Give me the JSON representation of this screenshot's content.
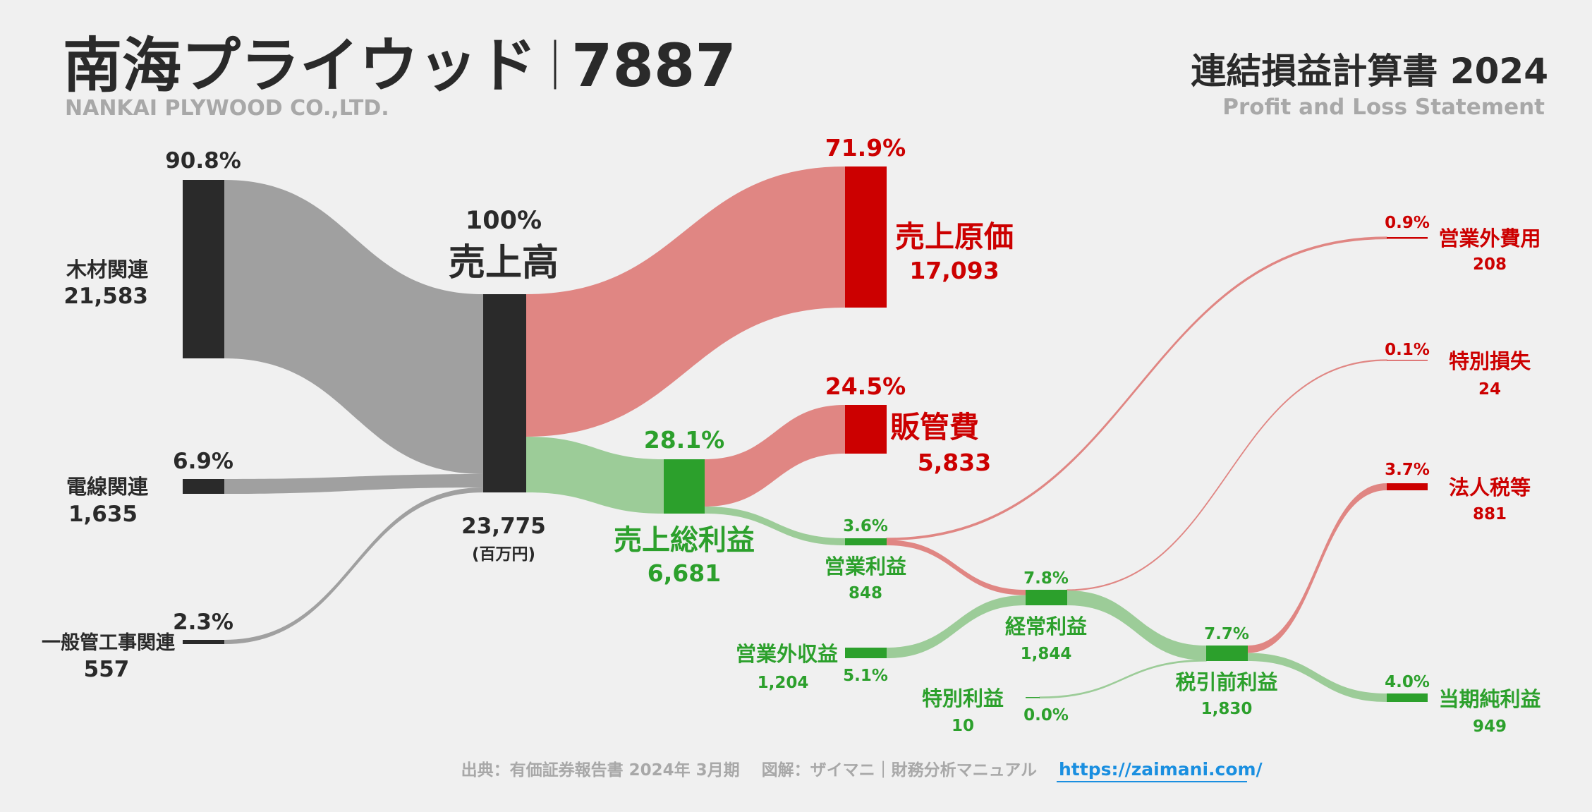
{
  "header": {
    "company": "南海プライウッド",
    "separator": "｜",
    "ticker": "7887",
    "company_en": "NANKAI PLYWOOD CO.,LTD.",
    "statement": "連結損益計算書 2024",
    "statement_en": "Profit and Loss Statement"
  },
  "footer": {
    "source": "出典：有価証券報告書 2024年 3月期　 図解：ザイマニ｜財務分析マニュアル",
    "link": "https://zaimani.com/"
  },
  "colors": {
    "dark": "#2a2a2a",
    "gray_flow": "#a0a0a0",
    "red": "#cc0000",
    "red_flow": "#e08683",
    "green": "#2ca02c",
    "green_flow": "#9ccc98",
    "link": "#1a8fe0"
  },
  "chart_data": {
    "type": "sankey",
    "unit": "百万円",
    "unit_label": "(百万円)",
    "nodes": {
      "wood": {
        "label": "木材関連",
        "value": "21,583",
        "pct": "90.8%"
      },
      "wire": {
        "label": "電線関連",
        "value": "1,635",
        "pct": "6.9%"
      },
      "pipe": {
        "label": "一般管工事関連",
        "value": "557",
        "pct": "2.3%"
      },
      "revenue": {
        "label": "売上高",
        "value": "23,775",
        "pct": "100%"
      },
      "cogs": {
        "label": "売上原価",
        "value": "17,093",
        "pct": "71.9%"
      },
      "sga": {
        "label": "販管費",
        "value": "5,833",
        "pct": "24.5%"
      },
      "gross": {
        "label": "売上総利益",
        "value": "6,681",
        "pct": "28.1%"
      },
      "op": {
        "label": "営業利益",
        "value": "848",
        "pct": "3.6%"
      },
      "nonop_inc": {
        "label": "営業外収益",
        "value": "1,204",
        "pct": "5.1%"
      },
      "nonop_exp": {
        "label": "営業外費用",
        "value": "208",
        "pct": "0.9%"
      },
      "ordinary": {
        "label": "経常利益",
        "value": "1,844",
        "pct": "7.8%"
      },
      "ext_gain": {
        "label": "特別利益",
        "value": "10",
        "pct": "0.0%"
      },
      "ext_loss": {
        "label": "特別損失",
        "value": "24",
        "pct": "0.1%"
      },
      "pretax": {
        "label": "税引前利益",
        "value": "1,830",
        "pct": "7.7%"
      },
      "tax": {
        "label": "法人税等",
        "value": "881",
        "pct": "3.7%"
      },
      "net": {
        "label": "当期純利益",
        "value": "949",
        "pct": "4.0%"
      }
    },
    "links": [
      {
        "from": "wood",
        "to": "revenue",
        "value": 21583
      },
      {
        "from": "wire",
        "to": "revenue",
        "value": 1635
      },
      {
        "from": "pipe",
        "to": "revenue",
        "value": 557
      },
      {
        "from": "revenue",
        "to": "cogs",
        "value": 17093
      },
      {
        "from": "revenue",
        "to": "gross",
        "value": 6681
      },
      {
        "from": "gross",
        "to": "sga",
        "value": 5833
      },
      {
        "from": "gross",
        "to": "op",
        "value": 848
      },
      {
        "from": "op",
        "to": "nonop_exp",
        "value": 208
      },
      {
        "from": "op",
        "to": "ordinary",
        "value": 640
      },
      {
        "from": "nonop_inc",
        "to": "ordinary",
        "value": 1204
      },
      {
        "from": "ordinary",
        "to": "ext_loss",
        "value": 24
      },
      {
        "from": "ordinary",
        "to": "pretax",
        "value": 1820
      },
      {
        "from": "ext_gain",
        "to": "pretax",
        "value": 10
      },
      {
        "from": "pretax",
        "to": "tax",
        "value": 881
      },
      {
        "from": "pretax",
        "to": "net",
        "value": 949
      }
    ]
  }
}
